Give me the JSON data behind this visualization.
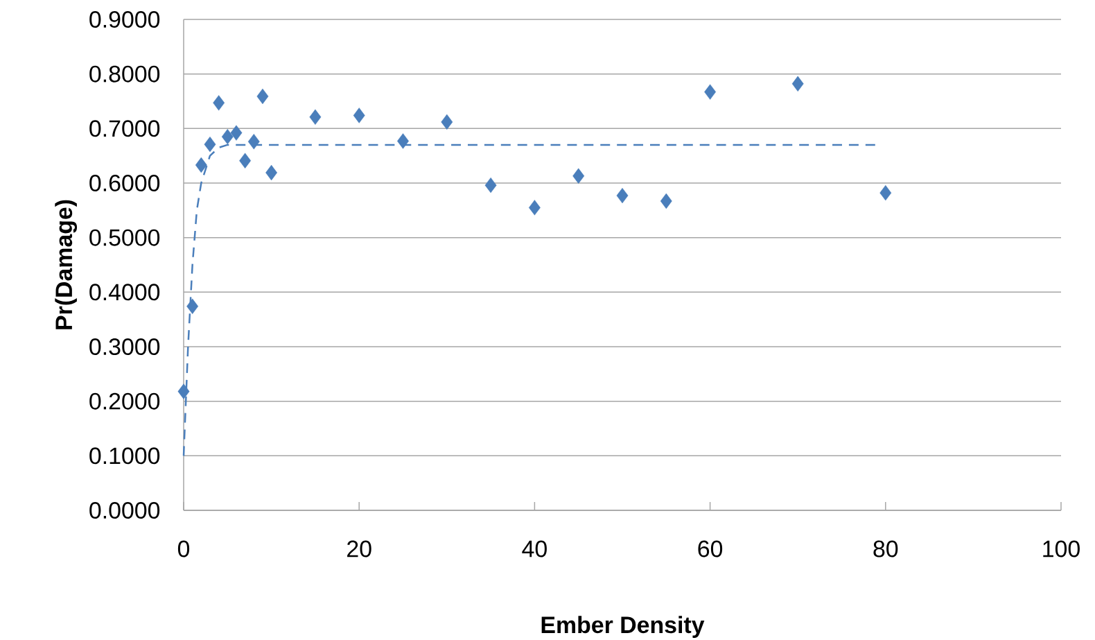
{
  "chart_data": {
    "type": "scatter",
    "xlabel": "Ember Density",
    "ylabel": "Pr(Damage)",
    "xlim": [
      0,
      100
    ],
    "xticks": [
      0,
      20,
      40,
      60,
      80,
      100
    ],
    "ylim": [
      0,
      0.9
    ],
    "yticks": [
      {
        "value": 0,
        "label": "0.0000"
      },
      {
        "value": 0.1,
        "label": "0.1000"
      },
      {
        "value": 0.2,
        "label": "0.2000"
      },
      {
        "value": 0.3,
        "label": "0.3000"
      },
      {
        "value": 0.4,
        "label": "0.4000"
      },
      {
        "value": 0.5,
        "label": "0.5000"
      },
      {
        "value": 0.6,
        "label": "0.6000"
      },
      {
        "value": 0.7,
        "label": "0.7000"
      },
      {
        "value": 0.8,
        "label": "0.8000"
      },
      {
        "value": 0.9,
        "label": "0.9000"
      }
    ],
    "grid": "y",
    "series": [
      {
        "color": "#4a7ebb",
        "marker": "diamond",
        "x": [
          0,
          1,
          2,
          3,
          4,
          5,
          6,
          7,
          8,
          9,
          10,
          15,
          20,
          25,
          30,
          35,
          40,
          45,
          50,
          55,
          60,
          70,
          80
        ],
        "values": [
          0.218,
          0.374,
          0.633,
          0.671,
          0.747,
          0.685,
          0.692,
          0.641,
          0.676,
          0.759,
          0.619,
          0.721,
          0.724,
          0.677,
          0.712,
          0.596,
          0.555,
          0.613,
          0.577,
          0.567,
          0.767,
          0.782,
          0.582
        ]
      },
      {
        "type": "line",
        "color": "#4a7ebb",
        "marker": "none",
        "line_style": "dashed",
        "x": [
          0,
          0.5,
          1,
          1.5,
          2,
          3,
          4,
          5,
          79
        ],
        "values": [
          0.1,
          0.3,
          0.45,
          0.55,
          0.6,
          0.65,
          0.665,
          0.67,
          0.67
        ]
      }
    ]
  }
}
